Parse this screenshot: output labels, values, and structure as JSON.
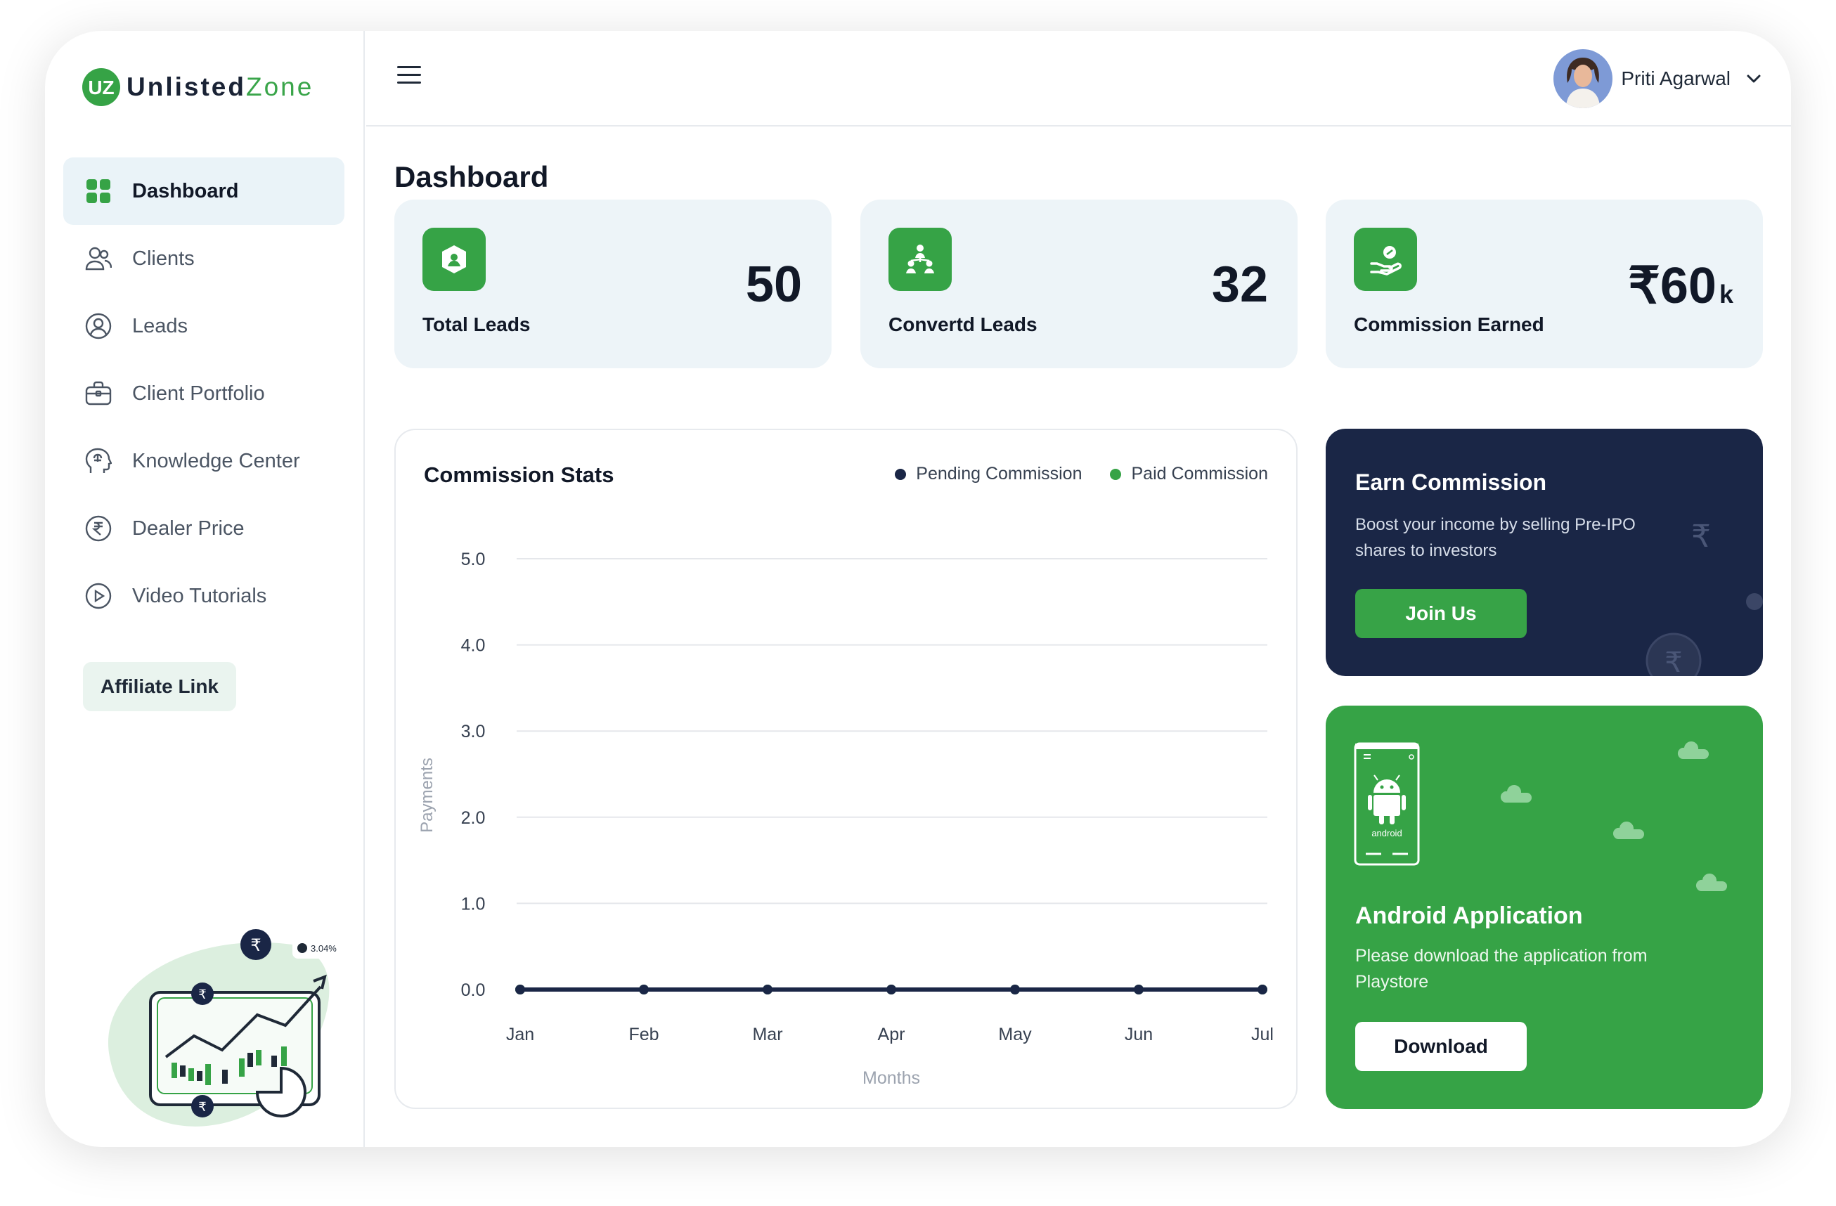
{
  "brand": {
    "name_a": "Unlisted",
    "name_b": "Zone",
    "mark": "UZ",
    "accent": "#36a346",
    "navy": "#1a2646"
  },
  "sidebar": {
    "items": [
      {
        "label": "Dashboard",
        "icon": "grid-icon",
        "active": true
      },
      {
        "label": "Clients",
        "icon": "users-icon"
      },
      {
        "label": "Leads",
        "icon": "user-circle-icon"
      },
      {
        "label": "Client Portfolio",
        "icon": "briefcase-icon"
      },
      {
        "label": "Knowledge Center",
        "icon": "brain-head-icon"
      },
      {
        "label": "Dealer Price",
        "icon": "rupee-circle-icon"
      },
      {
        "label": "Video Tutorials",
        "icon": "play-circle-icon"
      }
    ],
    "affiliate_label": "Affiliate Link",
    "illustration_badge": "3.04%"
  },
  "topbar": {
    "user_name": "Priti Agarwal"
  },
  "page": {
    "title": "Dashboard"
  },
  "stats": [
    {
      "label": "Total Leads",
      "value": "50",
      "icon": "user-badge-icon"
    },
    {
      "label": "Convertd Leads",
      "value": "32",
      "icon": "hierarchy-icon"
    },
    {
      "label": "Commission Earned",
      "value": "₹60",
      "suffix": "k",
      "icon": "hand-coin-icon"
    }
  ],
  "chart": {
    "title": "Commission Stats",
    "legend": [
      {
        "label": "Pending Commission",
        "color": "#1a2646"
      },
      {
        "label": "Paid Commission",
        "color": "#36a346"
      }
    ]
  },
  "chart_data": {
    "type": "line",
    "title": "Commission Stats",
    "xlabel": "Months",
    "ylabel": "Payments",
    "categories": [
      "Jan",
      "Feb",
      "Mar",
      "Apr",
      "May",
      "Jun",
      "Jul"
    ],
    "yticks": [
      "0.0",
      "1.0",
      "2.0",
      "3.0",
      "4.0",
      "5.0"
    ],
    "ylim": [
      0,
      5
    ],
    "grid": true,
    "legend_position": "top-right",
    "series": [
      {
        "name": "Pending Commission",
        "values": [
          0,
          0,
          0,
          0,
          0,
          0,
          0
        ],
        "color": "#1a2646"
      },
      {
        "name": "Paid Commission",
        "values": [
          0,
          0,
          0,
          0,
          0,
          0,
          0
        ],
        "color": "#36a346"
      }
    ]
  },
  "earn": {
    "title": "Earn Commission",
    "description": "Boost your income by selling Pre-IPO shares to investors",
    "button": "Join Us"
  },
  "android": {
    "title": "Android Application",
    "description": "Please download the application from Playstore",
    "button": "Download",
    "phone_label": "android"
  }
}
